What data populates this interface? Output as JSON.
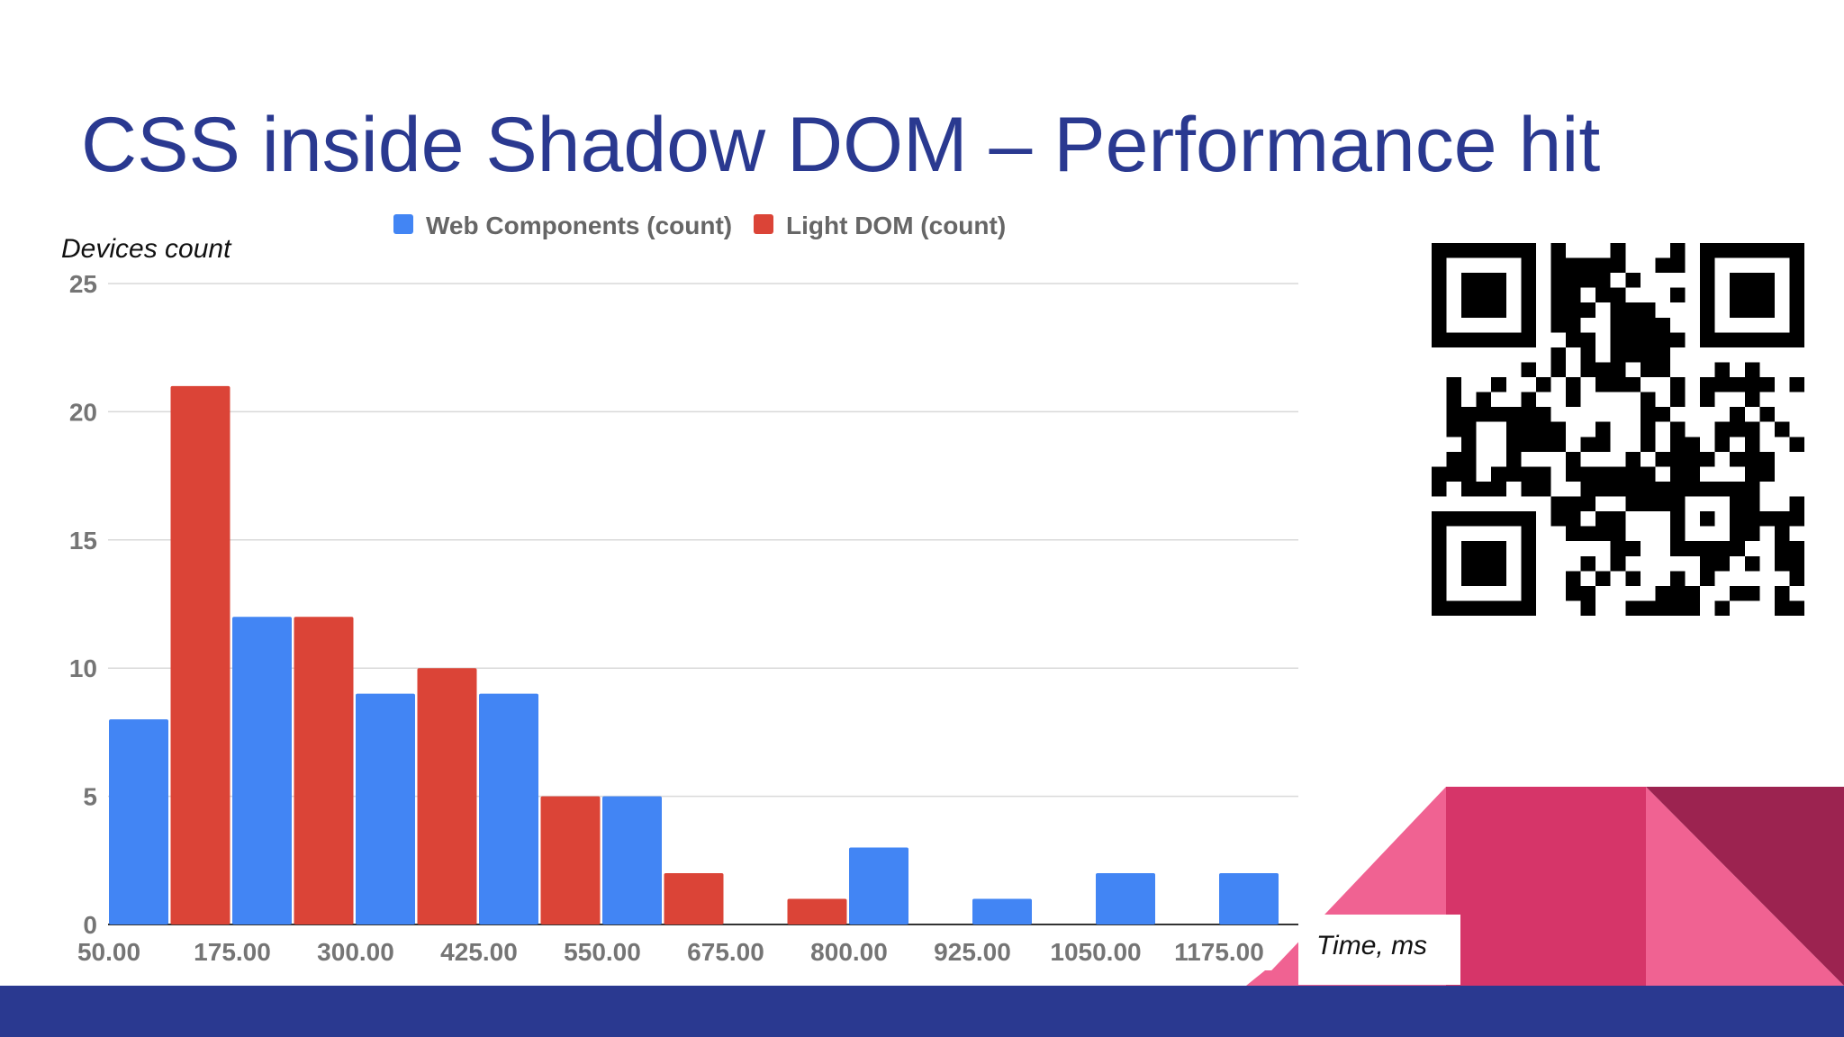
{
  "slide": {
    "title": "CSS inside Shadow DOM – Performance hit"
  },
  "chart_data": {
    "type": "bar",
    "title": "",
    "xlabel": "Time, ms",
    "ylabel": "Devices count",
    "ylim": [
      0,
      25
    ],
    "y_ticks": [
      0,
      5,
      10,
      15,
      20,
      25
    ],
    "x_tick_labels": [
      "50.00",
      "175.00",
      "300.00",
      "425.00",
      "550.00",
      "675.00",
      "800.00",
      "925.00",
      "1050.00",
      "1175.00"
    ],
    "categories": [
      "50.00",
      "112.50",
      "175.00",
      "237.50",
      "300.00",
      "362.50",
      "425.00",
      "487.50",
      "550.00",
      "612.50",
      "675.00",
      "737.50",
      "800.00",
      "862.50",
      "925.00",
      "987.50",
      "1050.00",
      "1112.50",
      "1175.00"
    ],
    "series": [
      {
        "name": "Web Components (count)",
        "color": "#4285f4",
        "values": [
          8,
          0,
          12,
          0,
          9,
          0,
          9,
          0,
          5,
          0,
          0,
          0,
          3,
          0,
          1,
          0,
          2,
          0,
          2
        ]
      },
      {
        "name": "Light DOM (count)",
        "color": "#db4437",
        "values": [
          0,
          21,
          0,
          12,
          0,
          10,
          0,
          5,
          0,
          2,
          0,
          1,
          0,
          0,
          0,
          0,
          0,
          0,
          0
        ]
      }
    ],
    "grid": true,
    "legend_position": "top"
  },
  "decor": {
    "qr_icon": "qr-code-icon",
    "accent_colors": [
      "#2a3990",
      "#f06292",
      "#d63569",
      "#9c2350"
    ]
  }
}
